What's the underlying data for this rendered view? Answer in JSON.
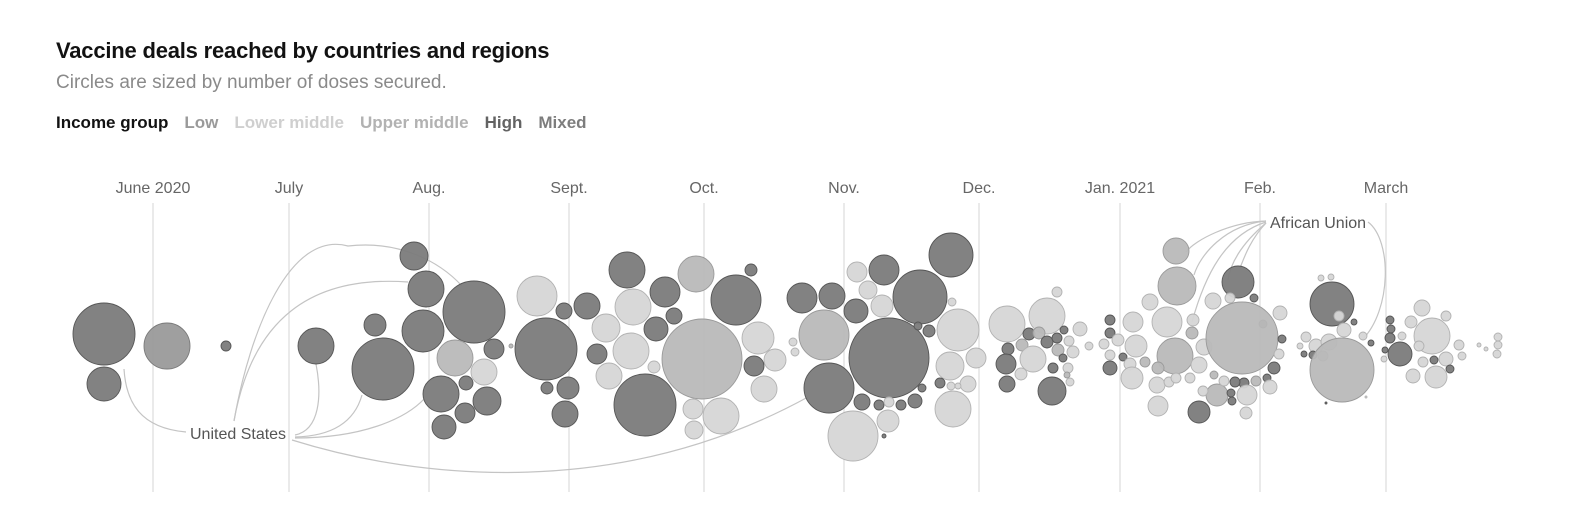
{
  "chart_data": {
    "type": "scatter",
    "title": "Vaccine deals reached by countries and regions",
    "subtitle": "Circles are sized by number of doses secured.",
    "legend": {
      "title": "Income group",
      "items": [
        {
          "label": "Low",
          "color": "#9a9a9a"
        },
        {
          "label": "Lower middle",
          "color": "#cfcfcf"
        },
        {
          "label": "Upper middle",
          "color": "#b2b2b2"
        },
        {
          "label": "High",
          "color": "#636363"
        },
        {
          "label": "Mixed",
          "color": "#7d7d7d"
        }
      ],
      "placement": "top-left"
    },
    "x_axis": {
      "ticks": [
        "June 2020",
        "July",
        "Aug.",
        "Sept.",
        "Oct.",
        "Nov.",
        "Dec.",
        "Jan. 2021",
        "Feb.",
        "March"
      ],
      "range": [
        "2020-05-23",
        "2021-03-31"
      ]
    },
    "annotations": [
      "United States",
      "African Union"
    ],
    "grid": true
  },
  "colors": {
    "high": "#7b7b7b",
    "mixed": "#9a9a9a",
    "upper_middle": "#b9b9b9",
    "lower_middle": "#d6d6d6",
    "gridline": "#dcdcdc",
    "connector": "#c4c4c4"
  }
}
